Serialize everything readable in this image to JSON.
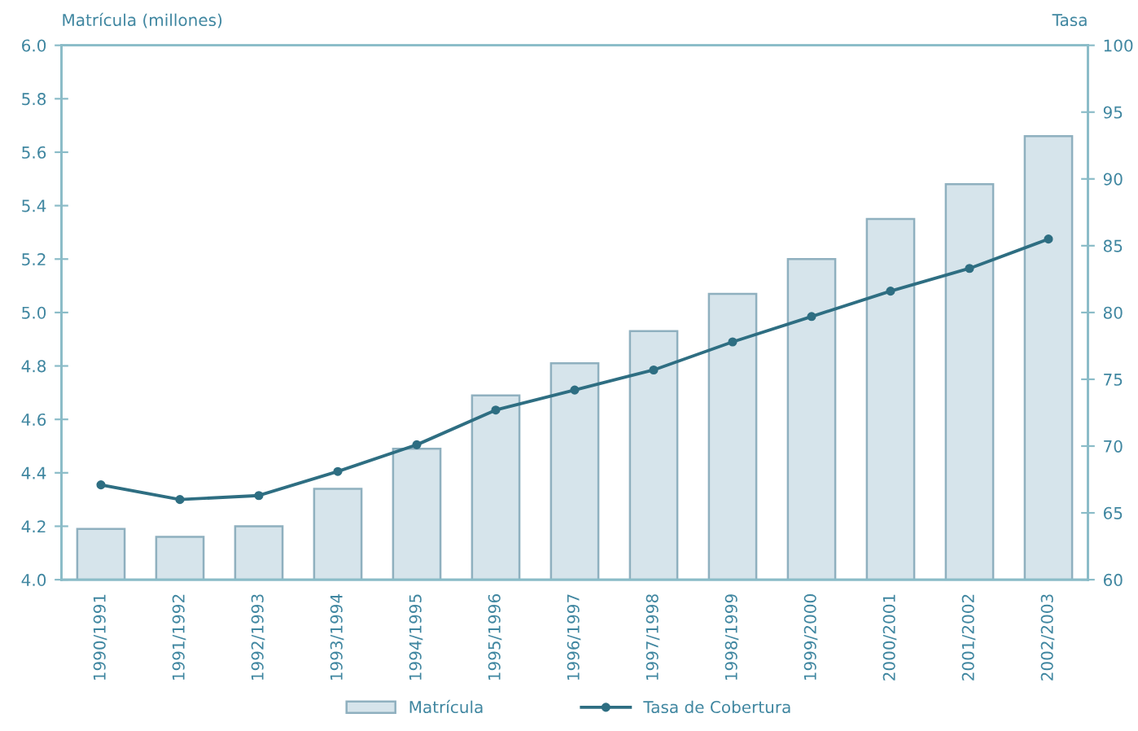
{
  "chart_data": {
    "type": "bar",
    "ylabel": "Matrícula (millones)",
    "y2label": "Tasa",
    "categories": [
      "1990/1991",
      "1991/1992",
      "1992/1993",
      "1993/1994",
      "1994/1995",
      "1995/1996",
      "1996/1997",
      "1997/1998",
      "1998/1999",
      "1999/2000",
      "2000/2001",
      "2001/2002",
      "2002/2003"
    ],
    "series": [
      {
        "name": "Matrícula",
        "color": "#d6e4eb",
        "values": [
          4.19,
          4.16,
          4.2,
          4.34,
          4.49,
          4.69,
          4.81,
          4.93,
          5.07,
          5.2,
          5.35,
          5.48,
          5.66
        ]
      },
      {
        "name": "Tasa de Cobertura",
        "type": "line",
        "axis": "y2",
        "color": "#2e6e82",
        "values": [
          67.1,
          66.0,
          66.3,
          68.1,
          70.1,
          72.7,
          74.2,
          75.7,
          77.8,
          79.7,
          81.6,
          83.3,
          85.5
        ]
      }
    ],
    "ylim": [
      4,
      6
    ],
    "yticks": [
      {
        "value": 4,
        "label": "4.0"
      },
      {
        "value": 4.2,
        "label": "4.2"
      },
      {
        "value": 4.4,
        "label": "4.4"
      },
      {
        "value": 4.6,
        "label": "4.6"
      },
      {
        "value": 4.8,
        "label": "4.8"
      },
      {
        "value": 5,
        "label": "5.0"
      },
      {
        "value": 5.2,
        "label": "5.2"
      },
      {
        "value": 5.4,
        "label": "5.4"
      },
      {
        "value": 5.6,
        "label": "5.6"
      },
      {
        "value": 5.8,
        "label": "5.8"
      },
      {
        "value": 6,
        "label": "6.0"
      }
    ],
    "y2lim": [
      60,
      100
    ],
    "y2ticks": [
      60,
      65,
      70,
      75,
      80,
      85,
      90,
      95,
      100
    ],
    "legend": "bottom",
    "marker": "circle",
    "line_style": "solid",
    "grid": false
  }
}
